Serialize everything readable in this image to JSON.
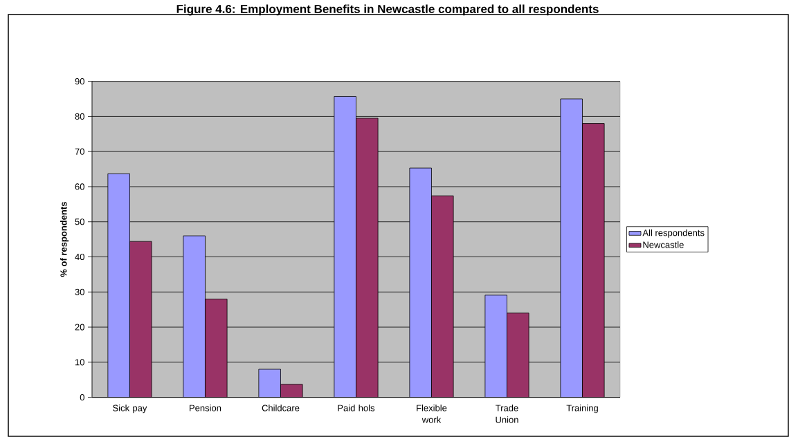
{
  "chart_data": {
    "type": "bar",
    "title": "Figure 4.6: Employment Benefits in Newcastle compared to all respondents",
    "ylabel": "% of respondents",
    "categories": [
      "Sick pay",
      "Pension",
      "Childcare",
      "Paid hols",
      "Flexible work",
      "Trade Union",
      "Training"
    ],
    "series": [
      {
        "name": "All respondents",
        "color": "#9999ff",
        "values": [
          63.7,
          46,
          8,
          85.7,
          65.3,
          29.1,
          85
        ]
      },
      {
        "name": "Newcastle",
        "color": "#993366",
        "values": [
          44.4,
          28,
          3.7,
          79.5,
          57.4,
          24,
          78
        ]
      }
    ],
    "ylim": [
      0,
      90
    ],
    "yticks": [
      0,
      10,
      20,
      30,
      40,
      50,
      60,
      70,
      80,
      90
    ],
    "grid": "y",
    "legend": "right"
  }
}
